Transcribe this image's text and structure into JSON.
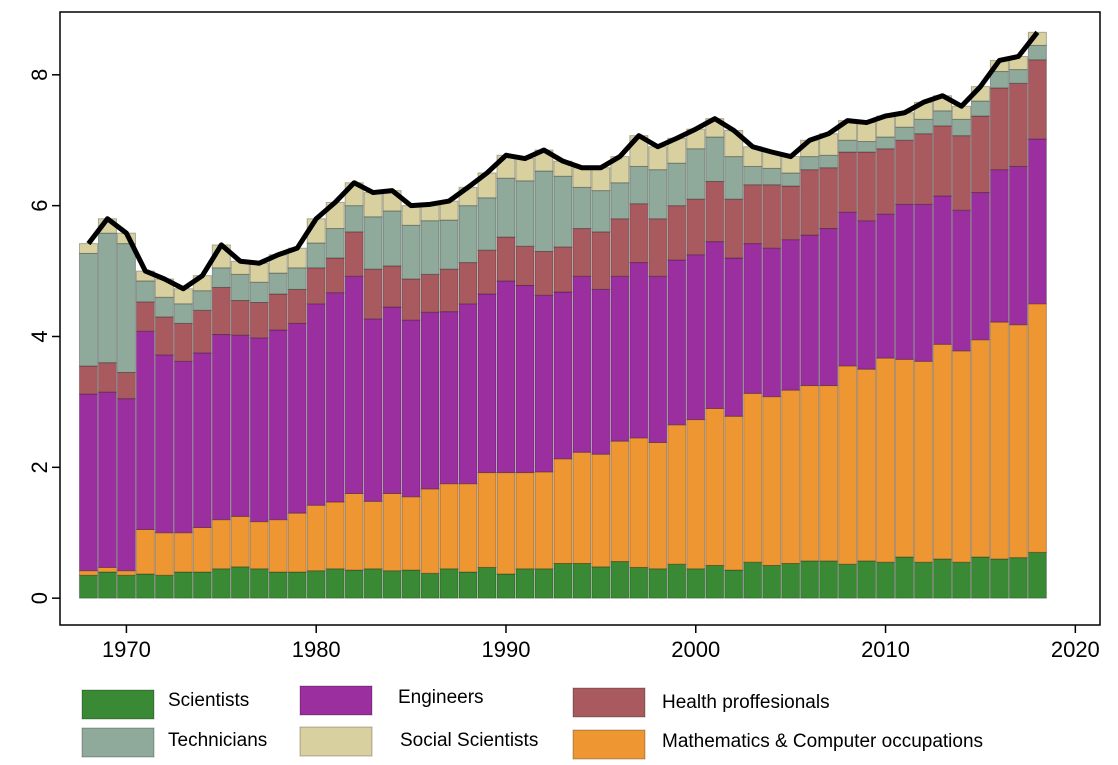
{
  "chart_data": {
    "type": "stacked-bar",
    "x": [
      1968,
      1969,
      1970,
      1971,
      1972,
      1973,
      1974,
      1975,
      1976,
      1977,
      1978,
      1979,
      1980,
      1981,
      1982,
      1983,
      1984,
      1985,
      1986,
      1987,
      1988,
      1989,
      1990,
      1991,
      1992,
      1993,
      1994,
      1995,
      1996,
      1997,
      1998,
      1999,
      2000,
      2001,
      2002,
      2003,
      2004,
      2005,
      2006,
      2007,
      2008,
      2009,
      2010,
      2011,
      2012,
      2013,
      2014,
      2015,
      2016,
      2017,
      2018
    ],
    "series": [
      {
        "name": "Scientists",
        "color": "#3a8a35",
        "values": [
          0.35,
          0.4,
          0.35,
          0.37,
          0.35,
          0.4,
          0.4,
          0.45,
          0.48,
          0.45,
          0.4,
          0.4,
          0.42,
          0.45,
          0.43,
          0.45,
          0.42,
          0.43,
          0.38,
          0.45,
          0.4,
          0.47,
          0.37,
          0.45,
          0.45,
          0.53,
          0.53,
          0.48,
          0.56,
          0.47,
          0.45,
          0.52,
          0.45,
          0.5,
          0.43,
          0.55,
          0.5,
          0.53,
          0.57,
          0.57,
          0.52,
          0.57,
          0.55,
          0.63,
          0.55,
          0.6,
          0.55,
          0.63,
          0.6,
          0.62,
          0.7
        ]
      },
      {
        "name": "Mathematics & Computer occupations",
        "color": "#ee9632",
        "values": [
          0.07,
          0.07,
          0.07,
          0.68,
          0.65,
          0.6,
          0.68,
          0.75,
          0.77,
          0.72,
          0.8,
          0.9,
          1.0,
          1.02,
          1.17,
          1.03,
          1.18,
          1.12,
          1.29,
          1.3,
          1.35,
          1.45,
          1.55,
          1.47,
          1.48,
          1.6,
          1.7,
          1.72,
          1.84,
          1.98,
          1.93,
          2.13,
          2.28,
          2.4,
          2.35,
          2.58,
          2.58,
          2.65,
          2.68,
          2.68,
          3.03,
          2.93,
          3.12,
          3.02,
          3.07,
          3.28,
          3.23,
          3.32,
          3.62,
          3.56,
          3.8
        ]
      },
      {
        "name": "Engineers",
        "color": "#9b2fa0",
        "values": [
          2.7,
          2.68,
          2.63,
          3.03,
          2.72,
          2.62,
          2.67,
          2.83,
          2.77,
          2.81,
          2.9,
          2.9,
          3.08,
          3.2,
          3.32,
          2.79,
          2.85,
          2.7,
          2.7,
          2.63,
          2.75,
          2.73,
          2.93,
          2.86,
          2.7,
          2.55,
          2.69,
          2.52,
          2.52,
          2.68,
          2.54,
          2.52,
          2.52,
          2.55,
          2.42,
          2.29,
          2.27,
          2.3,
          2.3,
          2.4,
          2.35,
          2.27,
          2.2,
          2.37,
          2.4,
          2.27,
          2.15,
          2.25,
          2.33,
          2.42,
          2.52
        ]
      },
      {
        "name": "Health proffesionals",
        "color": "#a85a5f",
        "values": [
          0.43,
          0.45,
          0.4,
          0.45,
          0.58,
          0.58,
          0.65,
          0.72,
          0.53,
          0.54,
          0.55,
          0.52,
          0.55,
          0.53,
          0.68,
          0.76,
          0.63,
          0.63,
          0.58,
          0.65,
          0.63,
          0.67,
          0.67,
          0.6,
          0.67,
          0.69,
          0.73,
          0.88,
          0.88,
          0.9,
          0.88,
          0.83,
          0.85,
          0.92,
          0.9,
          0.9,
          0.97,
          0.82,
          1.0,
          0.93,
          0.92,
          1.05,
          1.0,
          0.98,
          1.08,
          1.07,
          1.14,
          1.17,
          1.25,
          1.27,
          1.21
        ]
      },
      {
        "name": "Technicians",
        "color": "#8fa99b",
        "values": [
          1.72,
          1.98,
          1.97,
          0.32,
          0.3,
          0.3,
          0.3,
          0.3,
          0.4,
          0.31,
          0.32,
          0.33,
          0.38,
          0.45,
          0.4,
          0.8,
          0.84,
          0.82,
          0.82,
          0.75,
          0.87,
          0.8,
          0.9,
          1.0,
          1.23,
          1.08,
          0.63,
          0.63,
          0.55,
          0.57,
          0.75,
          0.65,
          0.77,
          0.68,
          0.65,
          0.28,
          0.25,
          0.2,
          0.2,
          0.19,
          0.18,
          0.16,
          0.18,
          0.2,
          0.22,
          0.23,
          0.25,
          0.23,
          0.25,
          0.21,
          0.22
        ]
      },
      {
        "name": "Social Scientists",
        "color": "#d8d19f",
        "values": [
          0.15,
          0.22,
          0.16,
          0.15,
          0.28,
          0.23,
          0.23,
          0.35,
          0.2,
          0.29,
          0.28,
          0.3,
          0.37,
          0.4,
          0.35,
          0.37,
          0.31,
          0.3,
          0.25,
          0.29,
          0.28,
          0.38,
          0.35,
          0.34,
          0.32,
          0.23,
          0.3,
          0.35,
          0.4,
          0.47,
          0.35,
          0.38,
          0.3,
          0.28,
          0.4,
          0.3,
          0.25,
          0.25,
          0.25,
          0.33,
          0.3,
          0.29,
          0.32,
          0.22,
          0.26,
          0.23,
          0.2,
          0.22,
          0.17,
          0.2,
          0.2
        ]
      }
    ],
    "total_line": {
      "color": "#000000",
      "values": [
        5.42,
        5.8,
        5.58,
        5.0,
        4.88,
        4.73,
        4.93,
        5.4,
        5.15,
        5.12,
        5.25,
        5.35,
        5.8,
        6.05,
        6.35,
        6.2,
        6.23,
        6.0,
        6.02,
        6.07,
        6.28,
        6.5,
        6.77,
        6.72,
        6.85,
        6.68,
        6.58,
        6.58,
        6.75,
        7.07,
        6.9,
        7.03,
        7.17,
        7.33,
        7.15,
        6.9,
        6.82,
        6.75,
        7.0,
        7.1,
        7.3,
        7.27,
        7.37,
        7.42,
        7.58,
        7.68,
        7.52,
        7.82,
        8.22,
        8.28,
        8.65
      ]
    },
    "xlim": [
      1966.5,
      2021.3
    ],
    "xticks": [
      1970,
      1980,
      1990,
      2000,
      2010,
      2020
    ],
    "ylim": [
      -0.41,
      8.96
    ],
    "yticks": [
      0,
      2,
      4,
      6,
      8
    ]
  }
}
